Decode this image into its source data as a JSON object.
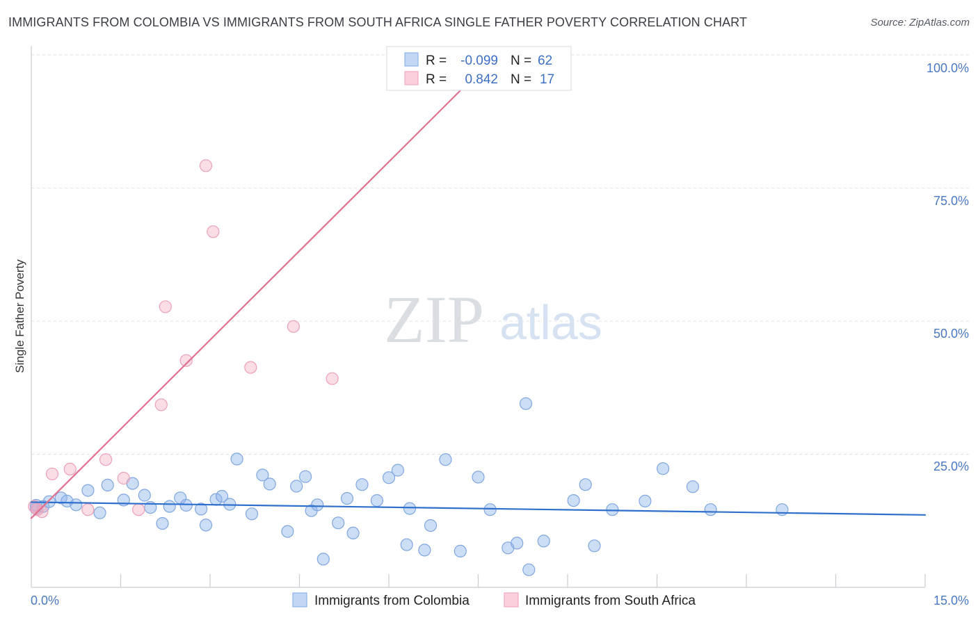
{
  "header": {
    "title": "IMMIGRANTS FROM COLOMBIA VS IMMIGRANTS FROM SOUTH AFRICA SINGLE FATHER POVERTY CORRELATION CHART",
    "source": "Source: ZipAtlas.com"
  },
  "watermark": {
    "zip": "ZIP",
    "atlas": "atlas"
  },
  "legend": {
    "r_label": "R =",
    "n_label": "N =",
    "rows": [
      {
        "r": "-0.099",
        "n": "62"
      },
      {
        "r": "0.842",
        "n": "17"
      }
    ]
  },
  "chart_data": {
    "type": "scatter",
    "title": "IMMIGRANTS FROM COLOMBIA VS IMMIGRANTS FROM SOUTH AFRICA SINGLE FATHER POVERTY CORRELATION CHART",
    "xlabel": "",
    "ylabel": "Single Father Poverty",
    "xlim": [
      0,
      15
    ],
    "ylim": [
      0,
      100
    ],
    "x_tick_labels": [
      "0.0%",
      "15.0%"
    ],
    "y_tick_labels": [
      "100.0%",
      "75.0%",
      "50.0%",
      "25.0%"
    ],
    "y_ticks": [
      100,
      75,
      50,
      25
    ],
    "grid": true,
    "legend_position": "bottom",
    "colors": {
      "colombia": "#8fb4ea",
      "south_africa": "#f2a9bf",
      "colombia_line": "#2f6fcc",
      "south_africa_line": "#e0708f"
    },
    "series": [
      {
        "name": "Immigrants from Colombia",
        "color": "#8fb4ea",
        "r": -0.099,
        "n": 62,
        "trend": [
          [
            0,
            16.0
          ],
          [
            15,
            13.6
          ]
        ],
        "points": [
          [
            0.08,
            14.8
          ],
          [
            0.2,
            15.2
          ],
          [
            0.3,
            16.1
          ],
          [
            0.5,
            16.8
          ],
          [
            0.6,
            16.2
          ],
          [
            0.75,
            15.5
          ],
          [
            0.95,
            18.2
          ],
          [
            1.15,
            14.0
          ],
          [
            1.28,
            19.2
          ],
          [
            1.55,
            16.4
          ],
          [
            1.7,
            19.5
          ],
          [
            1.9,
            17.3
          ],
          [
            2.0,
            15.0
          ],
          [
            2.2,
            12.0
          ],
          [
            2.32,
            15.2
          ],
          [
            2.5,
            16.8
          ],
          [
            2.6,
            15.4
          ],
          [
            2.85,
            14.7
          ],
          [
            2.93,
            11.7
          ],
          [
            3.1,
            16.5
          ],
          [
            3.2,
            17.1
          ],
          [
            3.33,
            15.6
          ],
          [
            3.45,
            24.1
          ],
          [
            3.7,
            13.8
          ],
          [
            3.88,
            21.1
          ],
          [
            4.0,
            19.4
          ],
          [
            4.3,
            10.5
          ],
          [
            4.45,
            19.0
          ],
          [
            4.6,
            20.8
          ],
          [
            4.7,
            14.4
          ],
          [
            4.8,
            15.5
          ],
          [
            4.9,
            5.3
          ],
          [
            5.15,
            12.1
          ],
          [
            5.3,
            16.7
          ],
          [
            5.4,
            10.2
          ],
          [
            5.55,
            19.3
          ],
          [
            5.8,
            16.3
          ],
          [
            6.0,
            20.6
          ],
          [
            6.15,
            22.0
          ],
          [
            6.3,
            8.0
          ],
          [
            6.35,
            14.8
          ],
          [
            6.6,
            7.0
          ],
          [
            6.7,
            11.6
          ],
          [
            6.95,
            24.0
          ],
          [
            7.2,
            6.8
          ],
          [
            7.5,
            20.7
          ],
          [
            7.7,
            14.6
          ],
          [
            8.0,
            7.4
          ],
          [
            8.15,
            8.3
          ],
          [
            8.3,
            34.5
          ],
          [
            8.35,
            3.3
          ],
          [
            8.6,
            8.7
          ],
          [
            9.1,
            16.3
          ],
          [
            9.3,
            19.3
          ],
          [
            9.45,
            7.8
          ],
          [
            9.75,
            14.6
          ],
          [
            10.3,
            16.2
          ],
          [
            10.6,
            22.3
          ],
          [
            11.1,
            18.9
          ],
          [
            11.4,
            14.6
          ],
          [
            12.6,
            14.6
          ],
          [
            0.08,
            15.4
          ]
        ]
      },
      {
        "name": "Immigrants from South Africa",
        "color": "#f2a9bf",
        "r": 0.842,
        "n": 17,
        "trend": [
          [
            0,
            13.0
          ],
          [
            7.8,
            100
          ]
        ],
        "points": [
          [
            0.05,
            15.2
          ],
          [
            0.1,
            14.6
          ],
          [
            0.35,
            21.3
          ],
          [
            0.65,
            22.2
          ],
          [
            0.95,
            14.6
          ],
          [
            1.25,
            24.0
          ],
          [
            1.55,
            20.5
          ],
          [
            1.8,
            14.6
          ],
          [
            2.18,
            34.3
          ],
          [
            2.25,
            52.7
          ],
          [
            2.6,
            42.6
          ],
          [
            2.93,
            79.2
          ],
          [
            3.05,
            66.8
          ],
          [
            3.68,
            41.3
          ],
          [
            4.4,
            49.0
          ],
          [
            5.05,
            39.2
          ],
          [
            0.18,
            14.2
          ]
        ]
      }
    ]
  },
  "bottom_legend": [
    {
      "label": "Immigrants from Colombia"
    },
    {
      "label": "Immigrants from South Africa"
    }
  ]
}
